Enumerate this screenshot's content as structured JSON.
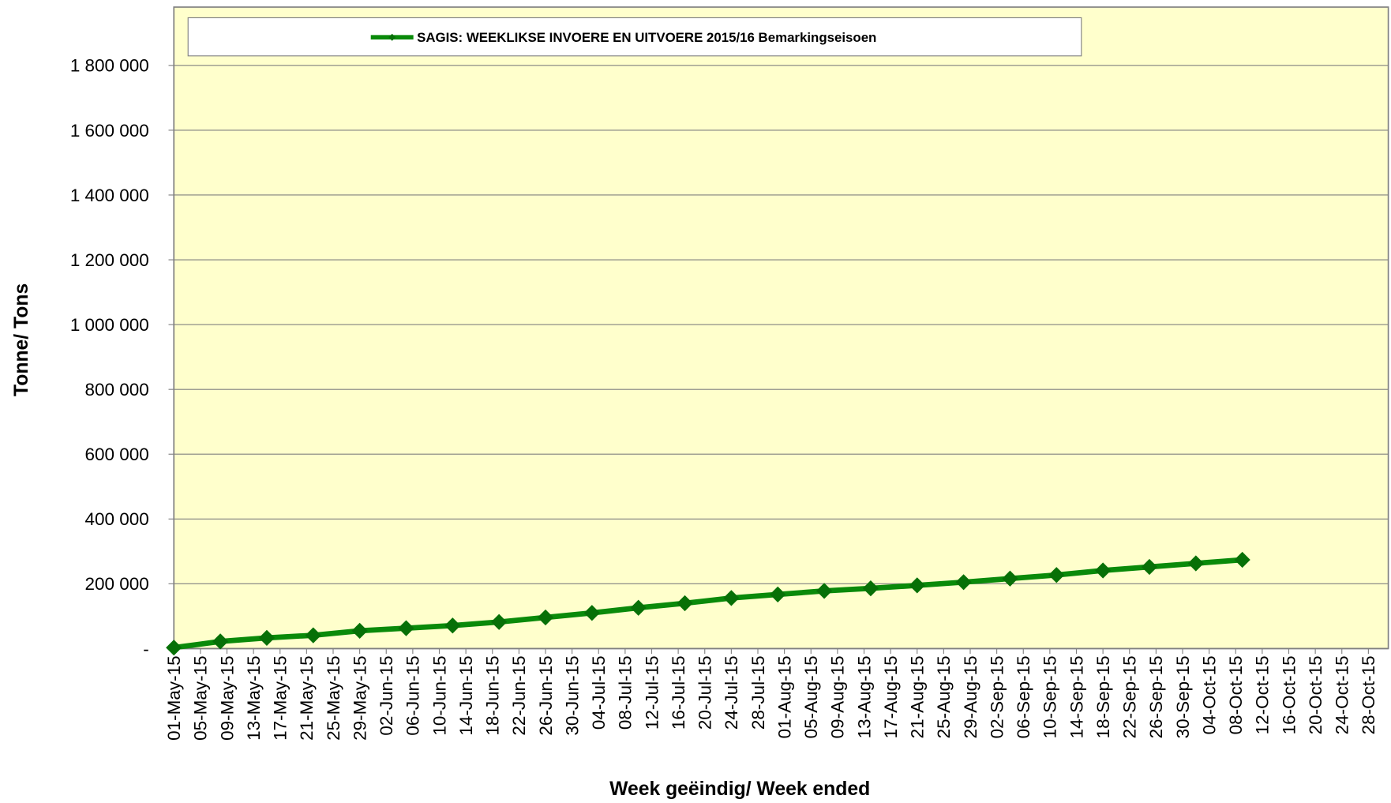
{
  "chart_data": {
    "type": "line",
    "legend_title": "SAGIS: WEEKLIKSE INVOERE EN UITVOERE 2015/16 Bemarkingseisoen",
    "x_label": "Week geëindig/ Week ended",
    "y_label": "Tonne/ Tons",
    "x": [
      "2015-05-01",
      "2015-05-08",
      "2015-05-15",
      "2015-05-22",
      "2015-05-29",
      "2015-06-05",
      "2015-06-12",
      "2015-06-19",
      "2015-06-26",
      "2015-07-03",
      "2015-07-10",
      "2015-07-17",
      "2015-07-24",
      "2015-07-31",
      "2015-08-07",
      "2015-08-14",
      "2015-08-21",
      "2015-08-28",
      "2015-09-04",
      "2015-09-11",
      "2015-09-18",
      "2015-09-25",
      "2015-10-02",
      "2015-10-09"
    ],
    "series": [
      {
        "name": "SAGIS: WEEKLIKSE INVOERE EN UITVOERE 2015/16 Bemarkingseisoen",
        "color": "#0a8a0a",
        "marker_color": "#077007",
        "values": [
          3000,
          22000,
          33000,
          41000,
          55000,
          63000,
          71000,
          82000,
          96000,
          110000,
          126000,
          140000,
          156000,
          167000,
          178000,
          186000,
          195000,
          205000,
          216000,
          227000,
          241000,
          252000,
          263000,
          274000
        ]
      }
    ],
    "xlim": [
      "2015-05-01",
      "2015-10-31"
    ],
    "xticks": [
      {
        "value": "2015-05-01",
        "label": "01-May-15"
      },
      {
        "value": "2015-05-05",
        "label": "05-May-15"
      },
      {
        "value": "2015-05-09",
        "label": "09-May-15"
      },
      {
        "value": "2015-05-13",
        "label": "13-May-15"
      },
      {
        "value": "2015-05-17",
        "label": "17-May-15"
      },
      {
        "value": "2015-05-21",
        "label": "21-May-15"
      },
      {
        "value": "2015-05-25",
        "label": "25-May-15"
      },
      {
        "value": "2015-05-29",
        "label": "29-May-15"
      },
      {
        "value": "2015-06-02",
        "label": "02-Jun-15"
      },
      {
        "value": "2015-06-06",
        "label": "06-Jun-15"
      },
      {
        "value": "2015-06-10",
        "label": "10-Jun-15"
      },
      {
        "value": "2015-06-14",
        "label": "14-Jun-15"
      },
      {
        "value": "2015-06-18",
        "label": "18-Jun-15"
      },
      {
        "value": "2015-06-22",
        "label": "22-Jun-15"
      },
      {
        "value": "2015-06-26",
        "label": "26-Jun-15"
      },
      {
        "value": "2015-06-30",
        "label": "30-Jun-15"
      },
      {
        "value": "2015-07-04",
        "label": "04-Jul-15"
      },
      {
        "value": "2015-07-08",
        "label": "08-Jul-15"
      },
      {
        "value": "2015-07-12",
        "label": "12-Jul-15"
      },
      {
        "value": "2015-07-16",
        "label": "16-Jul-15"
      },
      {
        "value": "2015-07-20",
        "label": "20-Jul-15"
      },
      {
        "value": "2015-07-24",
        "label": "24-Jul-15"
      },
      {
        "value": "2015-07-28",
        "label": "28-Jul-15"
      },
      {
        "value": "2015-08-01",
        "label": "01-Aug-15"
      },
      {
        "value": "2015-08-05",
        "label": "05-Aug-15"
      },
      {
        "value": "2015-08-09",
        "label": "09-Aug-15"
      },
      {
        "value": "2015-08-13",
        "label": "13-Aug-15"
      },
      {
        "value": "2015-08-17",
        "label": "17-Aug-15"
      },
      {
        "value": "2015-08-21",
        "label": "21-Aug-15"
      },
      {
        "value": "2015-08-25",
        "label": "25-Aug-15"
      },
      {
        "value": "2015-08-29",
        "label": "29-Aug-15"
      },
      {
        "value": "2015-09-02",
        "label": "02-Sep-15"
      },
      {
        "value": "2015-09-06",
        "label": "06-Sep-15"
      },
      {
        "value": "2015-09-10",
        "label": "10-Sep-15"
      },
      {
        "value": "2015-09-14",
        "label": "14-Sep-15"
      },
      {
        "value": "2015-09-18",
        "label": "18-Sep-15"
      },
      {
        "value": "2015-09-22",
        "label": "22-Sep-15"
      },
      {
        "value": "2015-09-26",
        "label": "26-Sep-15"
      },
      {
        "value": "2015-09-30",
        "label": "30-Sep-15"
      },
      {
        "value": "2015-10-04",
        "label": "04-Oct-15"
      },
      {
        "value": "2015-10-08",
        "label": "08-Oct-15"
      },
      {
        "value": "2015-10-12",
        "label": "12-Oct-15"
      },
      {
        "value": "2015-10-16",
        "label": "16-Oct-15"
      },
      {
        "value": "2015-10-20",
        "label": "20-Oct-15"
      },
      {
        "value": "2015-10-24",
        "label": "24-Oct-15"
      },
      {
        "value": "2015-10-28",
        "label": "28-Oct-15"
      }
    ],
    "ylim": [
      0,
      1980000
    ],
    "yticks": [
      {
        "value": 0,
        "label": "-"
      },
      {
        "value": 200000,
        "label": "200 000"
      },
      {
        "value": 400000,
        "label": "400 000"
      },
      {
        "value": 600000,
        "label": "600 000"
      },
      {
        "value": 800000,
        "label": "800 000"
      },
      {
        "value": 1000000,
        "label": "1 000 000"
      },
      {
        "value": 1200000,
        "label": "1 200 000"
      },
      {
        "value": 1400000,
        "label": "1 400 000"
      },
      {
        "value": 1600000,
        "label": "1 600 000"
      },
      {
        "value": 1800000,
        "label": "1 800 000"
      }
    ],
    "grid": true,
    "plot_background": "#ffffcc"
  }
}
